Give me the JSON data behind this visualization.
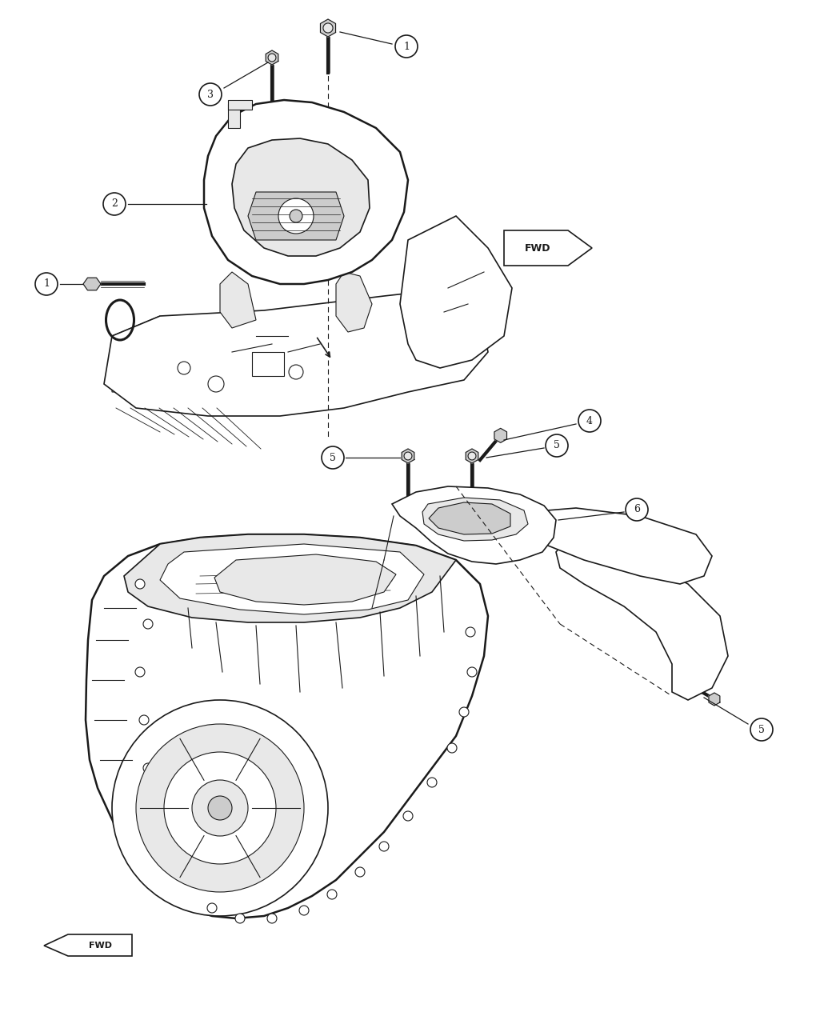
{
  "background_color": "#ffffff",
  "line_color": "#1a1a1a",
  "fig_width": 10.5,
  "fig_height": 12.75,
  "dpi": 100,
  "callout_numbers_upper": [
    1,
    2,
    3
  ],
  "callout_numbers_lower": [
    4,
    5,
    6
  ],
  "fwd_label": "FWD",
  "part_fill": "#ffffff",
  "shadow_fill": "#e8e8e8",
  "dark_fill": "#cccccc"
}
